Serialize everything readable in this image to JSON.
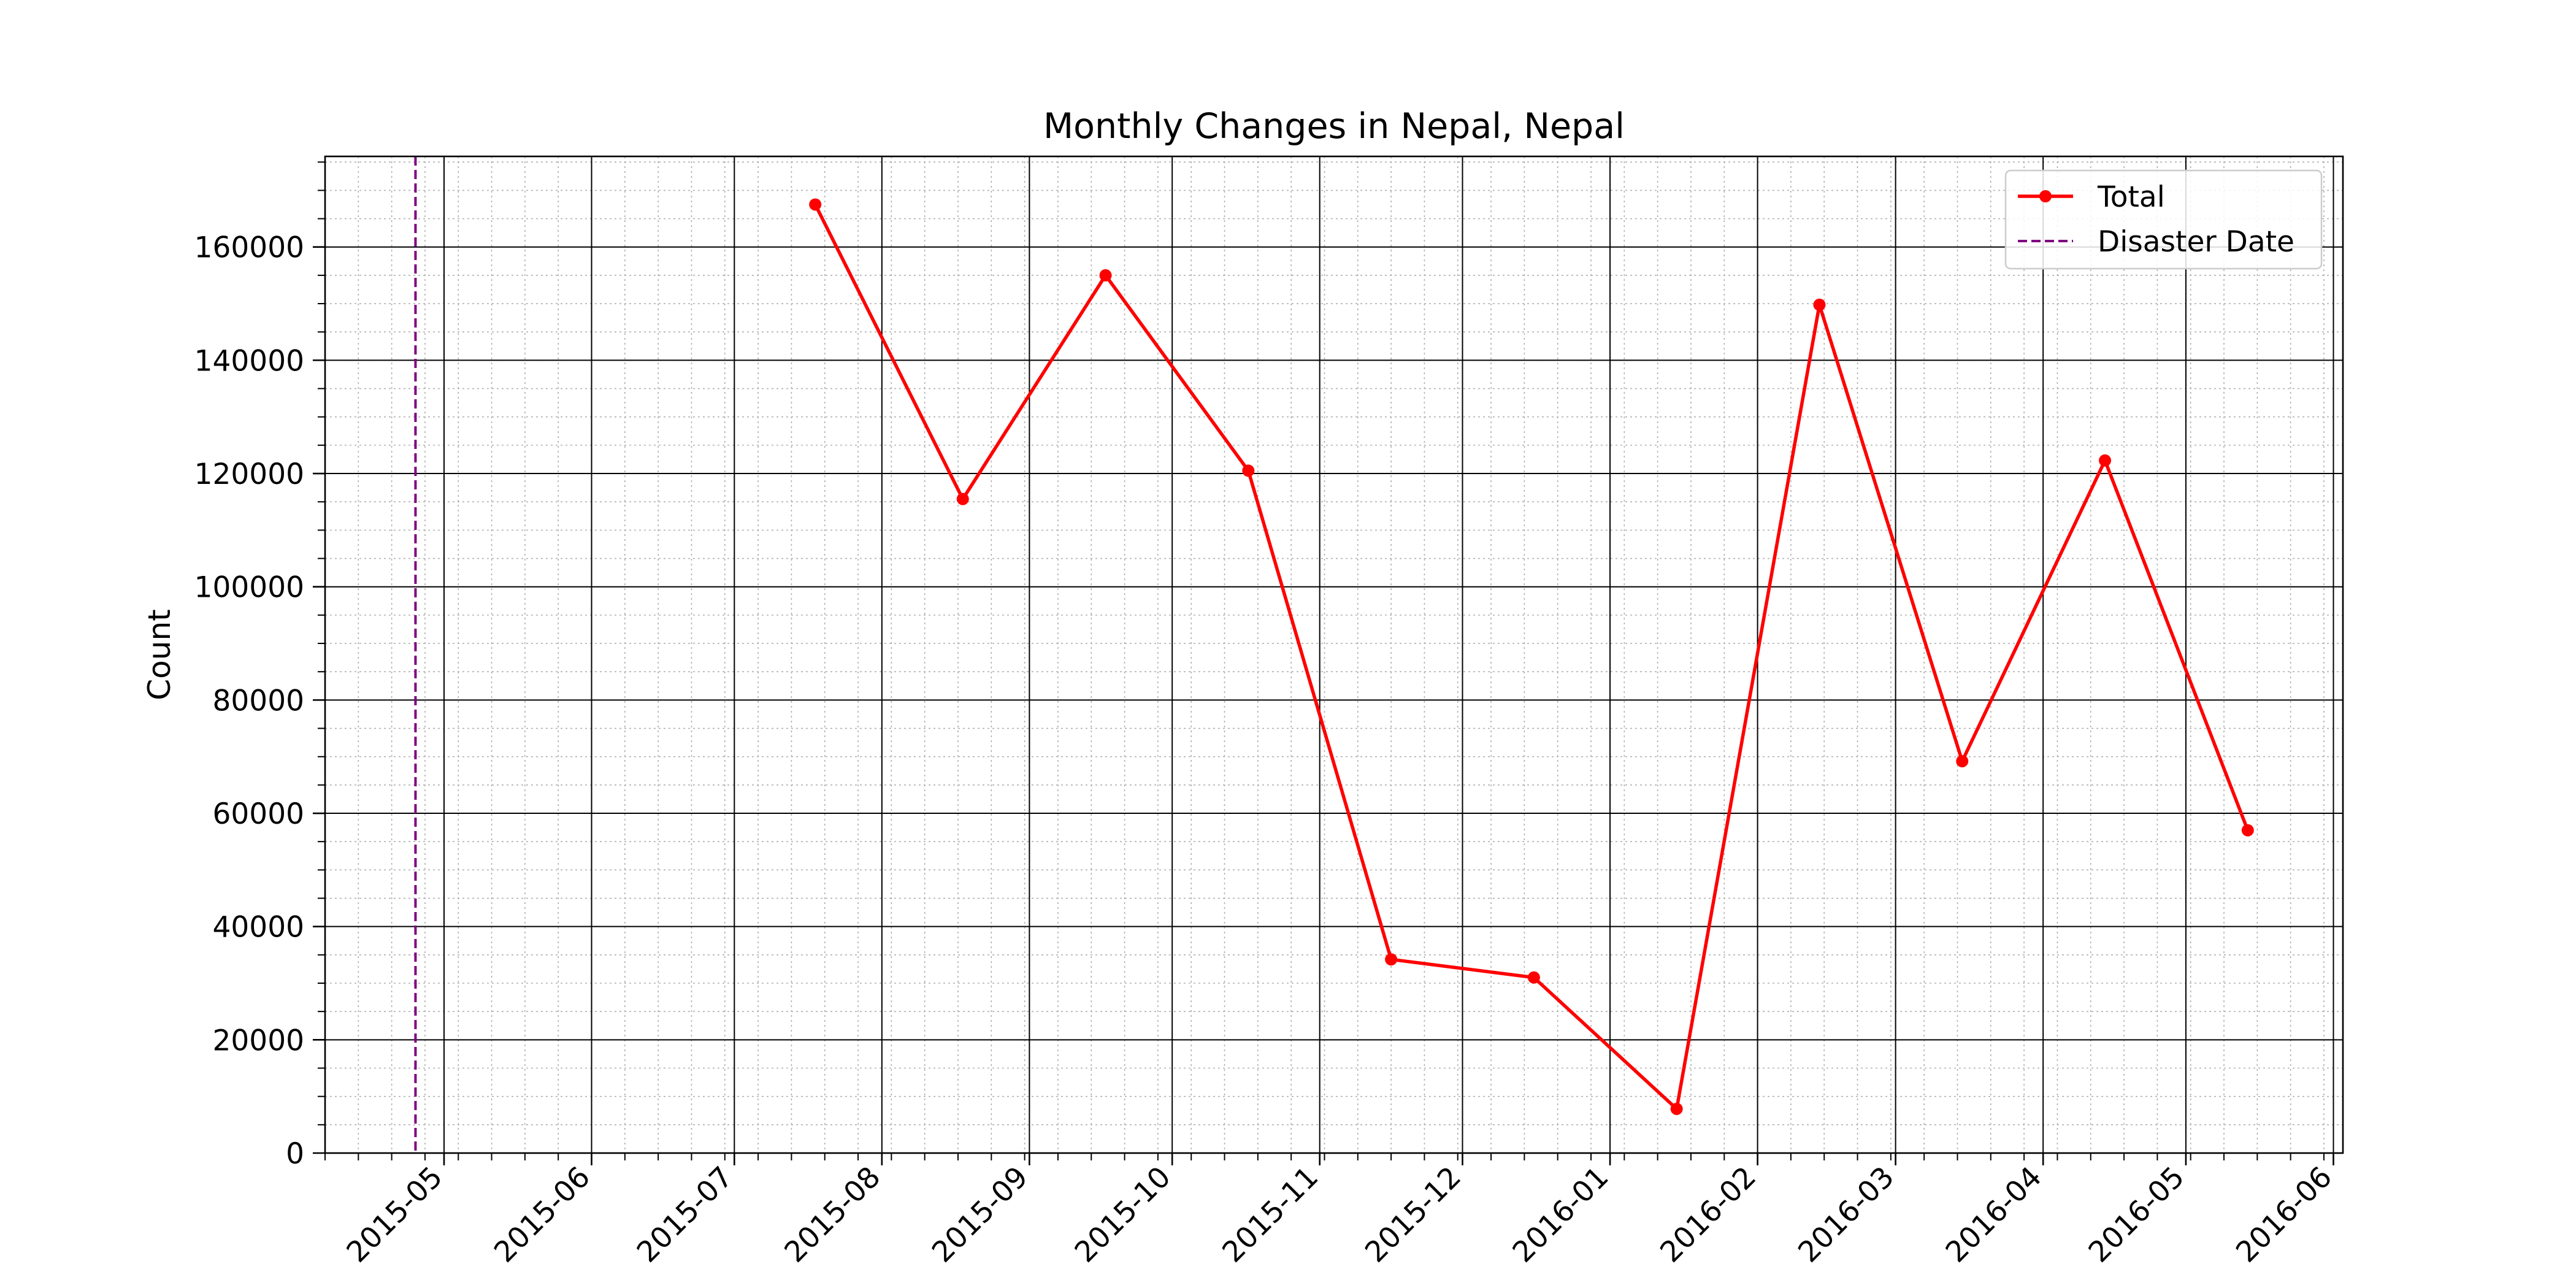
{
  "chart_data": {
    "type": "line",
    "title": "Monthly Changes in Nepal, Nepal",
    "xlabel": "",
    "ylabel": "Count",
    "x_range": [
      "2015-04-06",
      "2016-06-03"
    ],
    "ylim": [
      0,
      176000
    ],
    "x_ticks": [
      "2015-05-01",
      "2015-06-01",
      "2015-07-01",
      "2015-08-01",
      "2015-09-01",
      "2015-10-01",
      "2015-11-01",
      "2015-12-01",
      "2016-01-01",
      "2016-02-01",
      "2016-03-01",
      "2016-04-01",
      "2016-05-01",
      "2016-06-01"
    ],
    "x_tick_labels": [
      "2015-05",
      "2015-06",
      "2015-07",
      "2015-08",
      "2015-09",
      "2015-10",
      "2015-11",
      "2015-12",
      "2016-01",
      "2016-02",
      "2016-03",
      "2016-04",
      "2016-05",
      "2016-06"
    ],
    "y_ticks": [
      0,
      20000,
      40000,
      60000,
      80000,
      100000,
      120000,
      140000,
      160000
    ],
    "y_tick_labels": [
      "0",
      "20000",
      "40000",
      "60000",
      "80000",
      "100000",
      "120000",
      "140000",
      "160000"
    ],
    "grid": true,
    "minor_grid": true,
    "legend_position": "top-right",
    "series": [
      {
        "name": "Total",
        "color": "#ff0000",
        "marker": "circle",
        "x": [
          "2015-07-18",
          "2015-08-18",
          "2015-09-17",
          "2015-10-17",
          "2015-11-16",
          "2015-12-16",
          "2016-01-15",
          "2016-02-14",
          "2016-03-15",
          "2016-04-14",
          "2016-05-14"
        ],
        "values": [
          167500,
          115500,
          155000,
          120500,
          34200,
          31000,
          7800,
          149800,
          69200,
          122300,
          57000
        ]
      }
    ],
    "reference_lines": [
      {
        "name": "Disaster Date",
        "x": "2015-04-25",
        "color": "#800080",
        "style": "dashed"
      }
    ]
  }
}
